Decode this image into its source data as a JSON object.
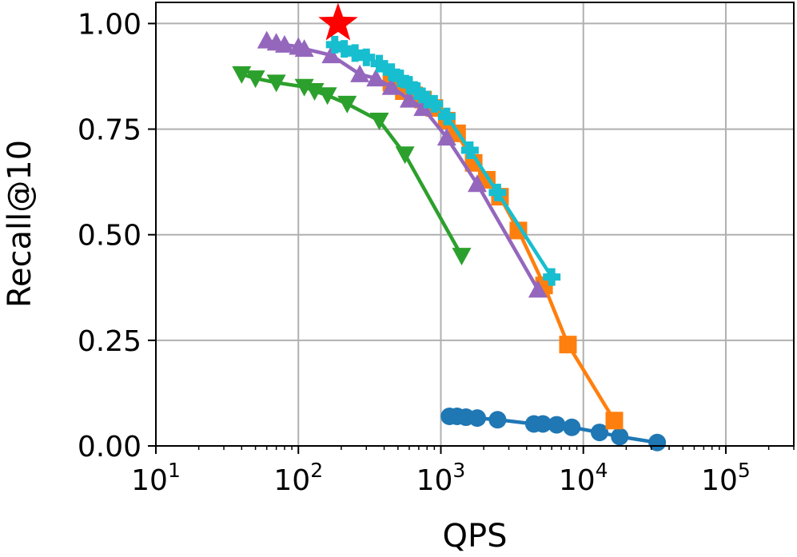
{
  "chart_data": {
    "type": "scatter",
    "title": "",
    "xlabel": "QPS",
    "ylabel": "Recall@10",
    "xscale": "log",
    "xlim": [
      10,
      300000
    ],
    "ylim": [
      0,
      1.05
    ],
    "grid": true,
    "legend": "none",
    "x_ticks": [
      {
        "value": 10,
        "base": "10",
        "exp": "1"
      },
      {
        "value": 100,
        "base": "10",
        "exp": "2"
      },
      {
        "value": 1000,
        "base": "10",
        "exp": "3"
      },
      {
        "value": 10000,
        "base": "10",
        "exp": "4"
      },
      {
        "value": 100000,
        "base": "10",
        "exp": "5"
      }
    ],
    "y_ticks": [
      {
        "value": 0.0,
        "label": "0.00"
      },
      {
        "value": 0.25,
        "label": "0.25"
      },
      {
        "value": 0.5,
        "label": "0.50"
      },
      {
        "value": 0.75,
        "label": "0.75"
      },
      {
        "value": 1.0,
        "label": "1.00"
      }
    ],
    "series": [
      {
        "color": "#1f77b4",
        "marker": "circle",
        "x": [
          1150,
          1300,
          1500,
          1800,
          2500,
          4500,
          5200,
          6500,
          8300,
          13000,
          18000,
          33000
        ],
        "y": [
          0.07,
          0.07,
          0.068,
          0.066,
          0.062,
          0.052,
          0.052,
          0.05,
          0.044,
          0.032,
          0.022,
          0.008
        ]
      },
      {
        "color": "#ff7f0e",
        "marker": "square",
        "x": [
          450,
          550,
          650,
          750,
          900,
          1100,
          1300,
          1700,
          2100,
          2600,
          3500,
          5300,
          7800,
          16500
        ],
        "y": [
          0.86,
          0.84,
          0.83,
          0.82,
          0.8,
          0.77,
          0.74,
          0.67,
          0.63,
          0.59,
          0.51,
          0.38,
          0.24,
          0.06
        ]
      },
      {
        "color": "#2ca02c",
        "marker": "triangle-down",
        "x": [
          40,
          50,
          70,
          110,
          130,
          160,
          220,
          370,
          560,
          1400
        ],
        "y": [
          0.88,
          0.87,
          0.86,
          0.85,
          0.84,
          0.83,
          0.81,
          0.77,
          0.69,
          0.45
        ]
      },
      {
        "color": "#9467bd",
        "marker": "triangle-up",
        "x": [
          60,
          70,
          80,
          100,
          110,
          170,
          270,
          350,
          450,
          600,
          750,
          1100,
          1800,
          4800
        ],
        "y": [
          0.96,
          0.955,
          0.95,
          0.945,
          0.94,
          0.925,
          0.88,
          0.87,
          0.85,
          0.82,
          0.8,
          0.73,
          0.62,
          0.37
        ]
      },
      {
        "color": "#17becf",
        "marker": "plus",
        "x": [
          180,
          210,
          250,
          300,
          370,
          450,
          520,
          600,
          680,
          800,
          900,
          1100,
          1600,
          2500,
          6000
        ],
        "y": [
          0.95,
          0.94,
          0.93,
          0.92,
          0.905,
          0.885,
          0.87,
          0.855,
          0.84,
          0.82,
          0.81,
          0.78,
          0.7,
          0.6,
          0.4
        ]
      },
      {
        "color": "#ff0000",
        "marker": "star",
        "x": [
          190
        ],
        "y": [
          1.0
        ]
      }
    ]
  }
}
